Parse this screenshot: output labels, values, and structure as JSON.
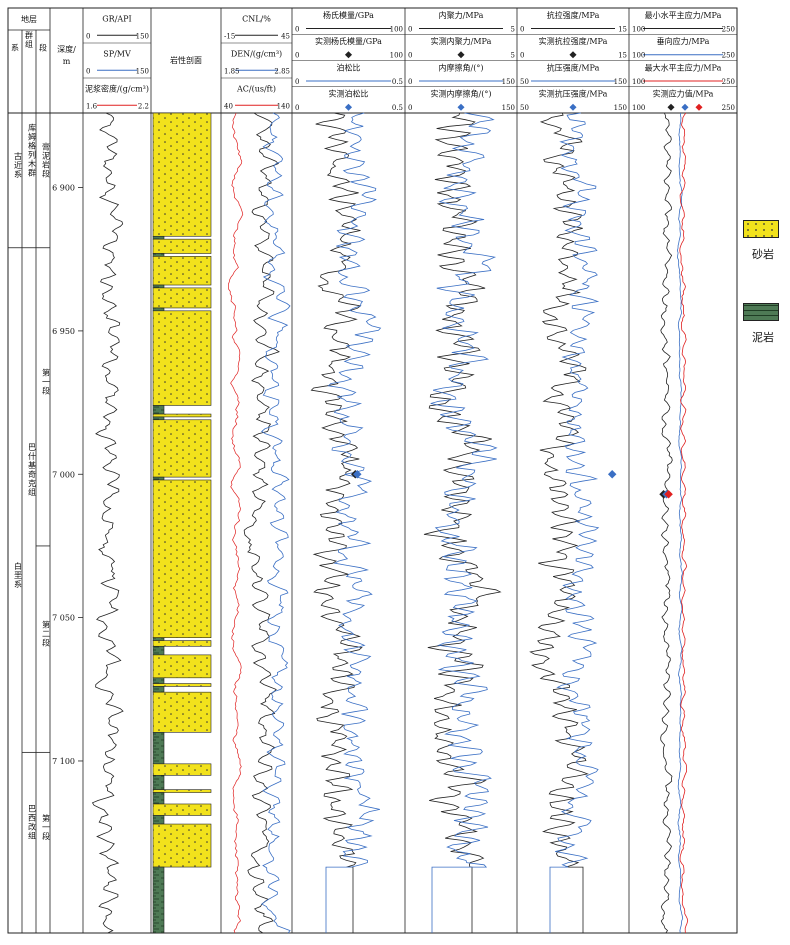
{
  "header": {
    "strata": "地层",
    "system": "系",
    "group": "群组",
    "member": "段",
    "depth_label": "深度/\nm",
    "litho_profile": "岩性剖面"
  },
  "strata": {
    "systems": [
      {
        "name": "古近系",
        "top": 6874,
        "bottom": 6921
      },
      {
        "name": "白垩系",
        "top": 6921,
        "bottom": 7160
      }
    ],
    "groups": [
      {
        "name": "库姆格列木群",
        "top": 6874,
        "bottom": 6921
      },
      {
        "name": "巴什基奇克组",
        "top": 6921,
        "bottom": 7097
      },
      {
        "name": "巴西改组",
        "top": 7097,
        "bottom": 7160
      }
    ],
    "members": [
      {
        "name": "膏泥岩段",
        "top": 6874,
        "bottom": 6921
      },
      {
        "name": "第一段",
        "top": 6921,
        "bottom": 7025
      },
      {
        "name": "第二段",
        "top": 7025,
        "bottom": 7097
      },
      {
        "name": "第一段",
        "top": 7097,
        "bottom": 7160
      }
    ]
  },
  "depth": {
    "top": 6874,
    "bottom": 7160,
    "ticks": [
      {
        "value": 6900,
        "label": "6 900"
      },
      {
        "value": 6950,
        "label": "6 950"
      },
      {
        "value": 7000,
        "label": "7 000"
      },
      {
        "value": 7050,
        "label": "7 050"
      },
      {
        "value": 7100,
        "label": "7 100"
      }
    ]
  },
  "tracks": {
    "logs1": {
      "curves": [
        {
          "label": "GR/API",
          "min": "0",
          "max": "150",
          "color": "#222222"
        },
        {
          "label": "SP/MV",
          "min": "0",
          "max": "150",
          "color": "#3a6fc4"
        },
        {
          "label": "泥浆密度/(g/cm³)",
          "min": "1.6",
          "max": "2.2",
          "color": "#e02020"
        }
      ]
    },
    "logs2": {
      "curves": [
        {
          "label": "CNL/%",
          "min": "-15",
          "max": "45",
          "color": "#222222"
        },
        {
          "label": "DEN/(g/cm³)",
          "min": "1.85",
          "max": "2.85",
          "color": "#3a6fc4"
        },
        {
          "label": "AC/(us/ft)",
          "min": "40",
          "max": "140",
          "color": "#e02020"
        }
      ]
    },
    "youngs": {
      "curves": [
        {
          "label": "杨氏模量/GPa",
          "min": "0",
          "max": "100",
          "color": "#222222",
          "kind": "line"
        },
        {
          "label": "实测杨氏模量/GPa",
          "min": "0",
          "max": "100",
          "color": "#222222",
          "kind": "marker"
        },
        {
          "label": "泊松比",
          "min": "0",
          "max": "0.5",
          "color": "#3a6fc4",
          "kind": "line"
        },
        {
          "label": "实测泊松比",
          "min": "0",
          "max": "0.5",
          "color": "#3a6fc4",
          "kind": "marker"
        }
      ]
    },
    "cohesion": {
      "curves": [
        {
          "label": "内聚力/MPa",
          "min": "0",
          "max": "5",
          "color": "#222222",
          "kind": "line"
        },
        {
          "label": "实测内聚力/MPa",
          "min": "0",
          "max": "5",
          "color": "#222222",
          "kind": "marker"
        },
        {
          "label": "内摩擦角/(°)",
          "min": "0",
          "max": "150",
          "color": "#3a6fc4",
          "kind": "line"
        },
        {
          "label": "实测内摩擦角/(°)",
          "min": "0",
          "max": "150",
          "color": "#3a6fc4",
          "kind": "marker"
        }
      ]
    },
    "strength": {
      "curves": [
        {
          "label": "抗拉强度/MPa",
          "min": "0",
          "max": "15",
          "color": "#222222",
          "kind": "line"
        },
        {
          "label": "实测抗拉强度/MPa",
          "min": "0",
          "max": "15",
          "color": "#222222",
          "kind": "marker"
        },
        {
          "label": "抗压强度/MPa",
          "min": "50",
          "max": "150",
          "color": "#3a6fc4",
          "kind": "line"
        },
        {
          "label": "实测抗压强度/MPa",
          "min": "50",
          "max": "150",
          "color": "#3a6fc4",
          "kind": "marker"
        }
      ]
    },
    "stress": {
      "curves": [
        {
          "label": "最小水平主应力/MPa",
          "min": "100",
          "max": "250",
          "color": "#222222",
          "kind": "line"
        },
        {
          "label": "垂向应力/MPa",
          "min": "100",
          "max": "250",
          "color": "#3a6fc4",
          "kind": "line"
        },
        {
          "label": "最大水平主应力/MPa",
          "min": "100",
          "max": "250",
          "color": "#e02020",
          "kind": "line"
        },
        {
          "label": "实测应力值/MPa",
          "min": "100",
          "max": "250",
          "color": "#222222",
          "kind": "markers3"
        }
      ]
    }
  },
  "lithology": {
    "colors": {
      "sandstone": "#f2e21c",
      "mudstone": "#4e7a55"
    },
    "intervals": [
      {
        "top": 6874,
        "bottom": 6917,
        "type": "sand"
      },
      {
        "top": 6917,
        "bottom": 6918,
        "type": "mud"
      },
      {
        "top": 6918,
        "bottom": 6923,
        "type": "sand"
      },
      {
        "top": 6923,
        "bottom": 6924,
        "type": "mud"
      },
      {
        "top": 6924,
        "bottom": 6934,
        "type": "sand"
      },
      {
        "top": 6934,
        "bottom": 6935,
        "type": "mud"
      },
      {
        "top": 6935,
        "bottom": 6942,
        "type": "sand"
      },
      {
        "top": 6942,
        "bottom": 6943,
        "type": "mud"
      },
      {
        "top": 6943,
        "bottom": 6976,
        "type": "sand"
      },
      {
        "top": 6976,
        "bottom": 6979,
        "type": "mud"
      },
      {
        "top": 6979,
        "bottom": 6980,
        "type": "sand"
      },
      {
        "top": 6980,
        "bottom": 6981,
        "type": "mud"
      },
      {
        "top": 6981,
        "bottom": 7001,
        "type": "sand"
      },
      {
        "top": 7001,
        "bottom": 7002,
        "type": "mud"
      },
      {
        "top": 7002,
        "bottom": 7057,
        "type": "sand"
      },
      {
        "top": 7057,
        "bottom": 7058,
        "type": "mud"
      },
      {
        "top": 7058,
        "bottom": 7060,
        "type": "sand"
      },
      {
        "top": 7060,
        "bottom": 7063,
        "type": "mud"
      },
      {
        "top": 7063,
        "bottom": 7071,
        "type": "sand"
      },
      {
        "top": 7071,
        "bottom": 7073,
        "type": "mud"
      },
      {
        "top": 7073,
        "bottom": 7074,
        "type": "sand"
      },
      {
        "top": 7074,
        "bottom": 7076,
        "type": "mud"
      },
      {
        "top": 7076,
        "bottom": 7090,
        "type": "sand"
      },
      {
        "top": 7090,
        "bottom": 7101,
        "type": "mud"
      },
      {
        "top": 7101,
        "bottom": 7105,
        "type": "sand"
      },
      {
        "top": 7105,
        "bottom": 7110,
        "type": "mud"
      },
      {
        "top": 7110,
        "bottom": 7111,
        "type": "sand"
      },
      {
        "top": 7111,
        "bottom": 7115,
        "type": "mud"
      },
      {
        "top": 7115,
        "bottom": 7119,
        "type": "sand"
      },
      {
        "top": 7119,
        "bottom": 7122,
        "type": "mud"
      },
      {
        "top": 7122,
        "bottom": 7137,
        "type": "sand"
      },
      {
        "top": 7137,
        "bottom": 7160,
        "type": "mud"
      }
    ]
  },
  "measured": {
    "depth": 7000,
    "youngs": {
      "value": 56
    },
    "strength": {
      "value": 135
    },
    "stress": {
      "values": [
        148,
        152,
        155
      ],
      "colors": [
        "#222222",
        "#3a6fc4",
        "#e02020"
      ]
    }
  },
  "legend": {
    "sandstone": "砂岩",
    "mudstone": "泥岩"
  }
}
